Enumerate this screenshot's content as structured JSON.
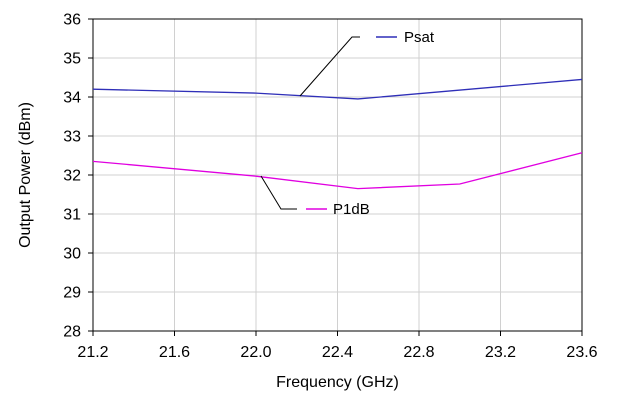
{
  "chart_data": {
    "type": "line",
    "title": "",
    "xlabel": "Frequency (GHz)",
    "ylabel": "Output Power (dBm)",
    "xlim": [
      21.2,
      23.6
    ],
    "ylim": [
      28,
      36
    ],
    "x_ticks": [
      "21.2",
      "21.6",
      "22.0",
      "22.4",
      "22.8",
      "23.2",
      "23.6"
    ],
    "y_ticks": [
      "28",
      "29",
      "30",
      "31",
      "32",
      "33",
      "34",
      "35",
      "36"
    ],
    "grid": true,
    "series": [
      {
        "name": "Psat",
        "color": "#2f2fb8",
        "x": [
          21.2,
          22.0,
          22.5,
          23.6
        ],
        "y": [
          34.2,
          34.1,
          33.95,
          34.45
        ]
      },
      {
        "name": "P1dB",
        "color": "#e000e0",
        "x": [
          21.2,
          22.0,
          22.5,
          23.0,
          23.6
        ],
        "y": [
          32.35,
          31.97,
          31.65,
          31.77,
          32.57
        ]
      }
    ]
  }
}
